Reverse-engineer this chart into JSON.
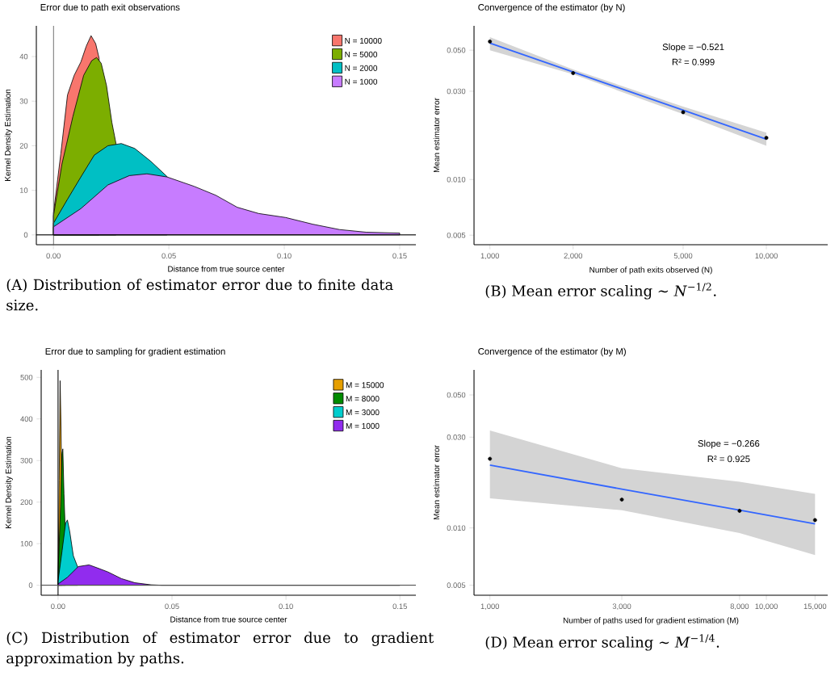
{
  "chart_data": [
    {
      "type": "area",
      "title": "Error due to path exit observations",
      "xlabel": "Distance from true source center",
      "ylabel": "Kernel Density Estimation",
      "series": [
        {
          "name": "N = 10000",
          "color": "#f8766d",
          "x": [
            0,
            0.0032,
            0.0061,
            0.009,
            0.0119,
            0.0142,
            0.0163,
            0.0183,
            0.0198
          ],
          "values": [
            4.8,
            18.2,
            31.4,
            35.8,
            38.8,
            42.3,
            44.7,
            42.9,
            39.6
          ]
        },
        {
          "name": "N = 5000",
          "color": "#7cae00",
          "x": [
            0,
            0.0037,
            0.0084,
            0.0131,
            0.0166,
            0.0187,
            0.0207,
            0.023,
            0.0253,
            0.0271
          ],
          "values": [
            4.2,
            15.9,
            26.5,
            35.8,
            39.1,
            39.8,
            38.5,
            33.5,
            25.3,
            20.5
          ]
        },
        {
          "name": "N = 2000",
          "color": "#00bfc4",
          "x": [
            0,
            0.0061,
            0.0119,
            0.0177,
            0.0236,
            0.0294,
            0.0352,
            0.0422,
            0.0492
          ],
          "values": [
            2.6,
            8.0,
            13.0,
            17.9,
            20.0,
            20.5,
            19.4,
            16.5,
            13.1
          ]
        },
        {
          "name": "N = 1000",
          "color": "#c77cff",
          "x": [
            0,
            0.0119,
            0.0236,
            0.0329,
            0.0405,
            0.0492,
            0.0609,
            0.0703,
            0.0796,
            0.0889,
            0.1006,
            0.1123,
            0.1239,
            0.1356,
            0.15
          ],
          "values": [
            1.8,
            5.9,
            11.2,
            13.3,
            13.7,
            13.0,
            10.9,
            8.9,
            6.2,
            4.8,
            3.9,
            2.4,
            1.2,
            0.6,
            0.4
          ]
        }
      ],
      "xlim": [
        -0.0074,
        0.157
      ],
      "ylim": [
        -2.2,
        46.9
      ],
      "xticks": [
        {
          "value": 0,
          "label": "0.00"
        },
        {
          "value": 0.05,
          "label": "0.05"
        },
        {
          "value": 0.1,
          "label": "0.10"
        },
        {
          "value": 0.15,
          "label": "0.15"
        }
      ],
      "yticks": [
        0,
        10,
        20,
        30,
        40
      ],
      "ref_lines": [
        {
          "axis": "x",
          "value": 0,
          "color": "#4d4d4d"
        },
        {
          "axis": "y",
          "value": 0,
          "color": "#000000"
        }
      ],
      "legend": "top right",
      "annotations": [
        "(A) Distribution of estimator error due to finite data size."
      ]
    },
    {
      "type": "scatter",
      "title": "Convergence of the estimator (by N)",
      "xlabel": "Number of path exits observed (N)",
      "ylabel": "Mean estimator error",
      "log": "xy",
      "series": [
        {
          "type": "scatter",
          "color": "#000000",
          "marker": "circle",
          "x": [
            1000,
            2000,
            5000,
            10000
          ],
          "values": [
            0.0557,
            0.0376,
            0.0231,
            0.0168
          ]
        },
        {
          "type": "line",
          "color": "#3366ff",
          "marker": "none",
          "x": [
            1000,
            2000,
            5000,
            10000
          ],
          "values": [
            0.0546,
            0.0381,
            0.0237,
            0.0165
          ],
          "lower": [
            0.05,
            0.037,
            0.0226,
            0.0152
          ],
          "upper": [
            0.0588,
            0.0393,
            0.0248,
            0.0179
          ]
        }
      ],
      "xlim": [
        876,
        16670
      ],
      "ylim": [
        0.00444,
        0.0677
      ],
      "xticks": [
        {
          "value": 1000,
          "label": "1,000"
        },
        {
          "value": 2000,
          "label": "2,000"
        },
        {
          "value": 5000,
          "label": "5,000"
        },
        {
          "value": 10000,
          "label": "10,000"
        }
      ],
      "yticks": [
        {
          "value": 0.005,
          "label": "0.005"
        },
        {
          "value": 0.01,
          "label": "0.010"
        },
        {
          "value": 0.03,
          "label": "0.030"
        },
        {
          "value": 0.05,
          "label": "0.050"
        }
      ],
      "annotations": [
        "Slope = −0.521",
        "R² = 0.999",
        "(B) Mean error scaling ∼ *N*$^{−1/2}$."
      ]
    },
    {
      "type": "area",
      "title": "Error due to sampling for gradient estimation",
      "xlabel": "Distance from true source center",
      "ylabel": "Kernel Density Estimation",
      "series": [
        {
          "name": "M = 15000",
          "color": "#e69f00",
          "x": [
            0,
            0.0005,
            0.0009,
            0.0013,
            0.0017
          ],
          "values": [
            6,
            253,
            492,
            382,
            188
          ]
        },
        {
          "name": "M = 8000",
          "color": "#008b00",
          "x": [
            0,
            0.0011,
            0.0017,
            0.0021,
            0.0026,
            0.0032
          ],
          "values": [
            26,
            188,
            317,
            328,
            220,
            123
          ]
        },
        {
          "name": "M = 3000",
          "color": "#00cdcd",
          "x": [
            0,
            0.0018,
            0.0033,
            0.0041,
            0.0051,
            0.0067,
            0.0086
          ],
          "values": [
            10,
            84,
            149,
            157,
            130,
            71,
            44
          ]
        },
        {
          "name": "M = 1000",
          "color": "#912cee",
          "x": [
            0,
            0.0041,
            0.0089,
            0.0136,
            0.0171,
            0.0219,
            0.0278,
            0.0337,
            0.0408,
            0.0455,
            0.15
          ],
          "values": [
            3,
            19,
            45,
            49,
            42,
            32,
            16,
            6,
            1,
            0,
            0
          ]
        }
      ],
      "xlim": [
        -0.0074,
        0.157
      ],
      "ylim": [
        -24,
        518
      ],
      "xticks": [
        {
          "value": 0,
          "label": "0.00"
        },
        {
          "value": 0.05,
          "label": "0.05"
        },
        {
          "value": 0.1,
          "label": "0.10"
        },
        {
          "value": 0.15,
          "label": "0.15"
        }
      ],
      "yticks": [
        0,
        100,
        200,
        300,
        400,
        500
      ],
      "ref_lines": [
        {
          "axis": "x",
          "value": 0,
          "color": "#000000"
        },
        {
          "axis": "y",
          "value": 0,
          "color": "#4d4d4d"
        }
      ],
      "legend": "top right",
      "annotations": [
        "(C) Distribution of estimator error due to gradient approximation by paths."
      ]
    },
    {
      "type": "scatter",
      "title": "Convergence of the estimator (by M)",
      "xlabel": "Number of paths used for gradient estimation (M)",
      "ylabel": "Mean estimator error",
      "log": "xy",
      "series": [
        {
          "type": "scatter",
          "color": "#000000",
          "marker": "circle",
          "x": [
            1000,
            3000,
            8000,
            15000
          ],
          "values": [
            0.0231,
            0.0141,
            0.0123,
            0.011
          ]
        },
        {
          "type": "line",
          "color": "#3366ff",
          "marker": "none",
          "x": [
            1000,
            3000,
            8000,
            15000
          ],
          "values": [
            0.0214,
            0.016,
            0.0124,
            0.0105
          ],
          "lower": [
            0.0143,
            0.0124,
            0.0094,
            0.0072
          ],
          "upper": [
            0.0325,
            0.0206,
            0.0175,
            0.0151
          ]
        }
      ],
      "xlim": [
        876,
        16670
      ],
      "ylim": [
        0.00443,
        0.0677
      ],
      "xticks": [
        {
          "value": 1000,
          "label": "1,000"
        },
        {
          "value": 3000,
          "label": "3,000"
        },
        {
          "value": 8000,
          "label": "8,000"
        },
        {
          "value": 10000,
          "label": "10,000"
        },
        {
          "value": 15000,
          "label": "15,000"
        }
      ],
      "yticks": [
        {
          "value": 0.005,
          "label": "0.005"
        },
        {
          "value": 0.01,
          "label": "0.010"
        },
        {
          "value": 0.03,
          "label": "0.030"
        },
        {
          "value": 0.05,
          "label": "0.050"
        }
      ],
      "annotations": [
        "Slope = −0.266",
        "R² = 0.925",
        "(D) Mean error scaling ∼ *M*$^{−1/4}$."
      ]
    }
  ]
}
